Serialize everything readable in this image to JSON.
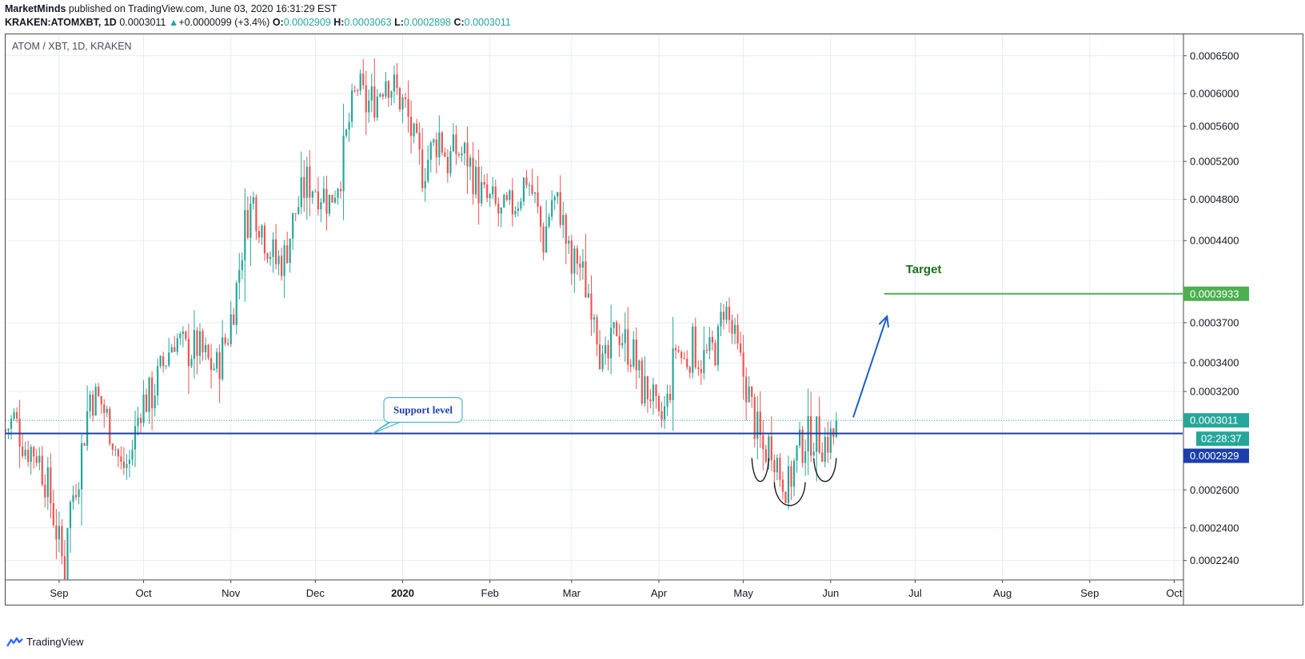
{
  "header": {
    "author": "MarketMinds",
    "published_text": "published on TradingView.com, June 03, 2020 16:31:29 EST",
    "symbol": "KRAKEN:ATOMXBT, 1D",
    "last": "0.0003011",
    "change_arrow": "▲",
    "change": "+0.0000099 (+3.4%)",
    "o_label": "O:",
    "o_value": "0.0002909",
    "h_label": "H:",
    "h_value": "0.0003063",
    "l_label": "L:",
    "l_value": "0.0002898",
    "c_label": "C:",
    "c_value": "0.0003011"
  },
  "pane_title": "ATOM / XBT, 1D, KRAKEN",
  "footer": {
    "brand": "TradingView",
    "logo_icon": "tradingview-logo-icon"
  },
  "colors": {
    "up": "#26a69a",
    "down": "#ef5350",
    "support": "#1c3fa8",
    "target": "#4caf50",
    "target_text": "#1b6e1b",
    "arrow": "#1c5fc2",
    "last_price": "#26a69a",
    "support_label_bg": "#1c3fa8",
    "grid": "#e4eef4"
  },
  "chart_data": {
    "type": "candlestick",
    "title": "ATOM / XBT, 1D, KRAKEN",
    "y_scale": "log",
    "ylim": [
      0.000215,
      0.00068
    ],
    "xlim": [
      "2019-08-13",
      "2020-10-04"
    ],
    "y_ticks": [
      "0.0006500",
      "0.0006000",
      "0.0005600",
      "0.0005200",
      "0.0004800",
      "0.0004400",
      "0.0003700",
      "0.0003400",
      "0.0003200",
      "0.0002600",
      "0.0002400",
      "0.0002240"
    ],
    "x_ticks": [
      {
        "date": "2019-09-01",
        "label": "Sep"
      },
      {
        "date": "2019-10-01",
        "label": "Oct"
      },
      {
        "date": "2019-11-01",
        "label": "Nov"
      },
      {
        "date": "2019-12-01",
        "label": "Dec"
      },
      {
        "date": "2020-01-01",
        "label": "2020"
      },
      {
        "date": "2020-02-01",
        "label": "Feb"
      },
      {
        "date": "2020-03-01",
        "label": "Mar"
      },
      {
        "date": "2020-04-01",
        "label": "Apr"
      },
      {
        "date": "2020-05-01",
        "label": "May"
      },
      {
        "date": "2020-06-01",
        "label": "Jun"
      },
      {
        "date": "2020-07-01",
        "label": "Jul"
      },
      {
        "date": "2020-08-01",
        "label": "Aug"
      },
      {
        "date": "2020-09-01",
        "label": "Sep"
      },
      {
        "date": "2020-10-01",
        "label": "Oct"
      }
    ],
    "close_path": [
      [
        "2019-08-13",
        0.000295
      ],
      [
        "2019-08-16",
        0.000302
      ],
      [
        "2019-08-20",
        0.000285
      ],
      [
        "2019-08-24",
        0.000282
      ],
      [
        "2019-08-28",
        0.000262
      ],
      [
        "2019-09-01",
        0.000232
      ],
      [
        "2019-09-03",
        0.000218
      ],
      [
        "2019-09-04",
        0.000245
      ],
      [
        "2019-09-08",
        0.000272
      ],
      [
        "2019-09-12",
        0.000318
      ],
      [
        "2019-09-16",
        0.000312
      ],
      [
        "2019-09-19",
        0.000298
      ],
      [
        "2019-09-23",
        0.000272
      ],
      [
        "2019-09-26",
        0.000276
      ],
      [
        "2019-09-30",
        0.000312
      ],
      [
        "2019-10-04",
        0.000318
      ],
      [
        "2019-10-08",
        0.000338
      ],
      [
        "2019-10-12",
        0.00036
      ],
      [
        "2019-10-16",
        0.000348
      ],
      [
        "2019-10-20",
        0.000352
      ],
      [
        "2019-10-24",
        0.00034
      ],
      [
        "2019-10-27",
        0.000336
      ],
      [
        "2019-10-31",
        0.000362
      ],
      [
        "2019-11-03",
        0.000398
      ],
      [
        "2019-11-06",
        0.000455
      ],
      [
        "2019-11-09",
        0.000478
      ],
      [
        "2019-11-13",
        0.000445
      ],
      [
        "2019-11-17",
        0.00042
      ],
      [
        "2019-11-20",
        0.000425
      ],
      [
        "2019-11-24",
        0.000468
      ],
      [
        "2019-11-28",
        0.000498
      ],
      [
        "2019-12-02",
        0.000492
      ],
      [
        "2019-12-06",
        0.000478
      ],
      [
        "2019-12-10",
        0.00051
      ],
      [
        "2019-12-13",
        0.000565
      ],
      [
        "2019-12-16",
        0.00061
      ],
      [
        "2019-12-19",
        0.000585
      ],
      [
        "2019-12-23",
        0.000598
      ],
      [
        "2019-12-26",
        0.000625
      ],
      [
        "2019-12-30",
        0.0006
      ],
      [
        "2020-01-02",
        0.000582
      ],
      [
        "2020-01-05",
        0.00054
      ],
      [
        "2020-01-08",
        0.00051
      ],
      [
        "2020-01-11",
        0.00053
      ],
      [
        "2020-01-14",
        0.00055
      ],
      [
        "2020-01-17",
        0.00052
      ],
      [
        "2020-01-20",
        0.000532
      ],
      [
        "2020-01-24",
        0.000525
      ],
      [
        "2020-01-27",
        0.000498
      ],
      [
        "2020-01-30",
        0.00048
      ],
      [
        "2020-02-02",
        0.000475
      ],
      [
        "2020-02-05",
        0.000462
      ],
      [
        "2020-02-08",
        0.00047
      ],
      [
        "2020-02-11",
        0.000482
      ],
      [
        "2020-02-14",
        0.000505
      ],
      [
        "2020-02-17",
        0.000478
      ],
      [
        "2020-02-20",
        0.00044
      ],
      [
        "2020-02-23",
        0.00048
      ],
      [
        "2020-02-26",
        0.00047
      ],
      [
        "2020-03-01",
        0.000412
      ],
      [
        "2020-03-03",
        0.000425
      ],
      [
        "2020-03-06",
        0.0004
      ],
      [
        "2020-03-09",
        0.000385
      ],
      [
        "2020-03-12",
        0.000335
      ],
      [
        "2020-03-14",
        0.000342
      ],
      [
        "2020-03-17",
        0.000368
      ],
      [
        "2020-03-20",
        0.000355
      ],
      [
        "2020-03-23",
        0.000345
      ],
      [
        "2020-03-26",
        0.000322
      ],
      [
        "2020-03-29",
        0.00032
      ],
      [
        "2020-04-01",
        0.000296
      ],
      [
        "2020-04-04",
        0.000312
      ],
      [
        "2020-04-07",
        0.000352
      ],
      [
        "2020-04-10",
        0.00034
      ],
      [
        "2020-04-13",
        0.000352
      ],
      [
        "2020-04-16",
        0.000342
      ],
      [
        "2020-04-19",
        0.000345
      ],
      [
        "2020-04-22",
        0.000355
      ],
      [
        "2020-04-24",
        0.000385
      ],
      [
        "2020-04-27",
        0.000362
      ],
      [
        "2020-04-29",
        0.000345
      ],
      [
        "2020-05-02",
        0.000325
      ],
      [
        "2020-05-05",
        0.0003
      ],
      [
        "2020-05-08",
        0.000282
      ],
      [
        "2020-05-11",
        0.000288
      ],
      [
        "2020-05-14",
        0.00027
      ],
      [
        "2020-05-17",
        0.000262
      ],
      [
        "2020-05-20",
        0.00028
      ],
      [
        "2020-05-23",
        0.00029
      ],
      [
        "2020-05-26",
        0.000293
      ],
      [
        "2020-05-29",
        0.000288
      ],
      [
        "2020-06-01",
        0.00029
      ],
      [
        "2020-06-02",
        0.000291
      ],
      [
        "2020-06-03",
        0.000301
      ]
    ],
    "last_candle": {
      "date": "2020-06-03",
      "open": 0.0002909,
      "high": 0.0003063,
      "low": 0.0002898,
      "close": 0.0003011
    },
    "support_level": {
      "label": "Support level",
      "value": 0.0002929
    },
    "target": {
      "label": "Target",
      "value": 0.0003933,
      "start": "2020-06-20"
    },
    "projection_arrow": {
      "from": [
        "2020-06-09",
        0.000303
      ],
      "to": [
        "2020-06-21",
        0.000375
      ]
    },
    "pattern_arcs": [
      {
        "from": "2020-05-04",
        "to": "2020-05-10",
        "low": 0.000263
      },
      {
        "from": "2020-05-12",
        "to": "2020-05-23",
        "low": 0.00025
      },
      {
        "from": "2020-05-26",
        "to": "2020-06-03",
        "low": 0.000263
      }
    ],
    "price_labels": {
      "last": "0.0003011",
      "countdown": "02:28:37",
      "support": "0.0002929",
      "target": "0.0003933"
    }
  }
}
